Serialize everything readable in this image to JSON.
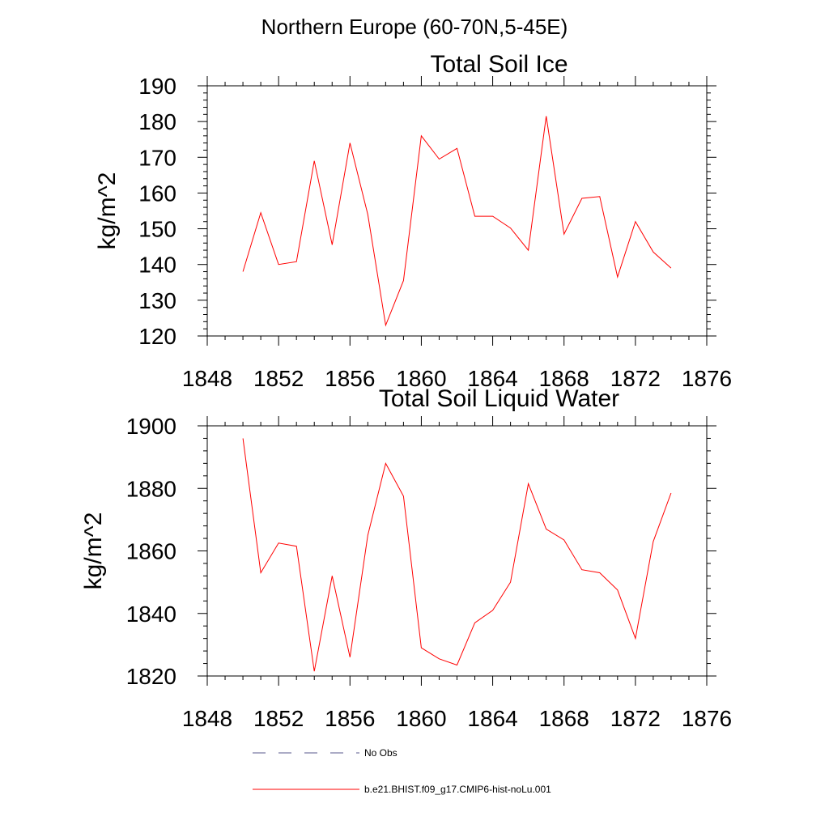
{
  "figure": {
    "suptitle": "Northern Europe (60-70N,5-45E)"
  },
  "legend": {
    "entries": [
      {
        "label": "No Obs",
        "color": "#5a5a8c",
        "style": "dashed"
      },
      {
        "label": "b.e21.BHIST.f09_g17.CMIP6-hist-noLu.001",
        "color": "#ff0000",
        "style": "solid"
      }
    ]
  },
  "chart_data": [
    {
      "type": "line",
      "title": "Total Soil Ice",
      "xlabel": "",
      "ylabel": "kg/m^2",
      "xlim": [
        1848,
        1876
      ],
      "ylim": [
        120,
        190
      ],
      "xticks": [
        1848,
        1852,
        1856,
        1860,
        1864,
        1868,
        1872,
        1876
      ],
      "yticks": [
        120,
        130,
        140,
        150,
        160,
        170,
        180,
        190
      ],
      "grid": false,
      "series": [
        {
          "color": "#ff0000",
          "x": [
            1850,
            1851,
            1852,
            1853,
            1854,
            1855,
            1856,
            1857,
            1858,
            1859,
            1860,
            1861,
            1862,
            1863,
            1864,
            1865,
            1866,
            1867,
            1868,
            1869,
            1870,
            1871,
            1872,
            1873,
            1874
          ],
          "y": [
            138,
            154.5,
            140,
            140.8,
            169,
            145.5,
            174,
            154,
            123,
            135.5,
            176,
            169.5,
            172.5,
            153.5,
            153.5,
            150.2,
            144,
            181.5,
            148.5,
            158.5,
            159,
            136.5,
            152,
            143.5,
            139
          ]
        }
      ]
    },
    {
      "type": "line",
      "title": "Total Soil Liquid Water",
      "xlabel": "",
      "ylabel": "kg/m^2",
      "xlim": [
        1848,
        1876
      ],
      "ylim": [
        1820,
        1900
      ],
      "xticks": [
        1848,
        1852,
        1856,
        1860,
        1864,
        1868,
        1872,
        1876
      ],
      "yticks": [
        1820,
        1840,
        1860,
        1880,
        1900
      ],
      "grid": false,
      "series": [
        {
          "color": "#ff0000",
          "x": [
            1850,
            1851,
            1852,
            1853,
            1854,
            1855,
            1856,
            1857,
            1858,
            1859,
            1860,
            1861,
            1862,
            1863,
            1864,
            1865,
            1866,
            1867,
            1868,
            1869,
            1870,
            1871,
            1872,
            1873,
            1874
          ],
          "y": [
            1896,
            1853,
            1862.5,
            1861.5,
            1821.5,
            1852,
            1826,
            1865,
            1888,
            1877.5,
            1829,
            1825.5,
            1823.5,
            1837,
            1841,
            1850,
            1881.5,
            1867,
            1863.5,
            1854,
            1853,
            1847.5,
            1832,
            1863,
            1878.5
          ]
        }
      ]
    }
  ]
}
